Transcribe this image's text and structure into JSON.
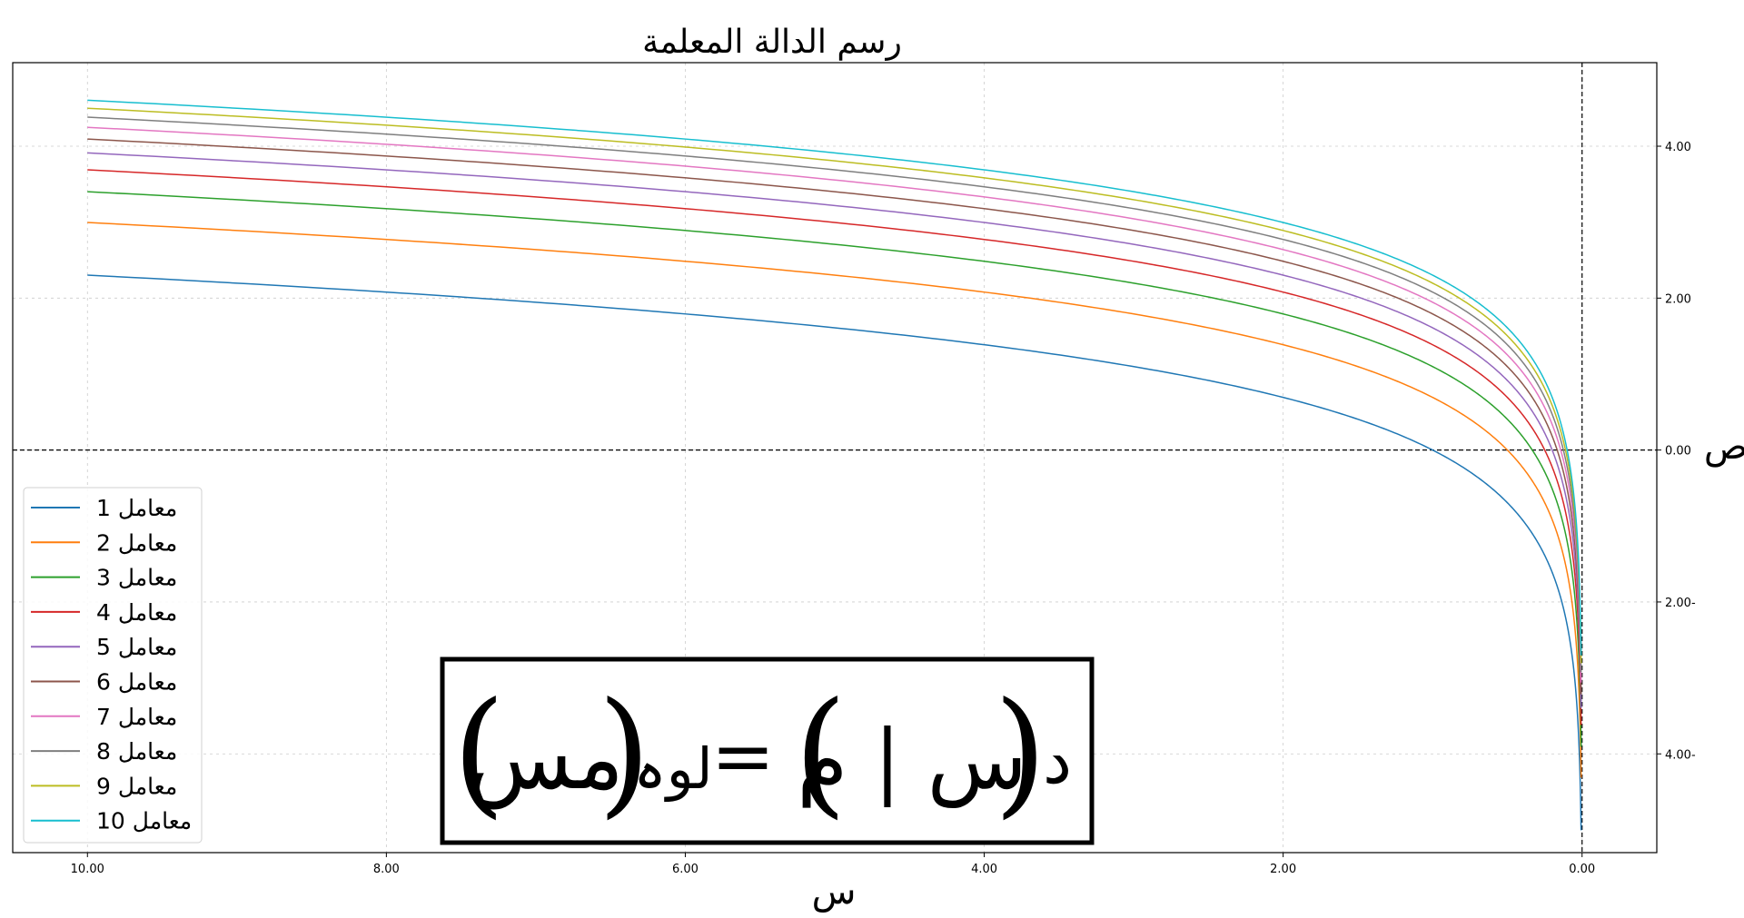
{
  "chart_data": {
    "type": "line",
    "title": "رسم الدالة المعلمة",
    "xlabel": "س",
    "ylabel": "ص",
    "xlim": [
      10.5,
      -0.5
    ],
    "ylim": [
      -5.3,
      5.1
    ],
    "x_inverted": true,
    "x_ticks": [
      "10.00",
      "8.00",
      "6.00",
      "4.00",
      "2.00",
      "0.00"
    ],
    "x_tick_values": [
      10,
      8,
      6,
      4,
      2,
      0
    ],
    "y_ticks": [
      "4.00",
      "2.00",
      "0.00",
      "2.00-",
      "4.00-"
    ],
    "y_tick_values": [
      4,
      2,
      0,
      -2,
      -4
    ],
    "y_axis_side": "right",
    "grid": true,
    "reference_lines": {
      "horizontal": 0,
      "vertical": 0
    },
    "function": "y = ln(m * x)",
    "x_range": [
      0.0067,
      10
    ],
    "legend_position": "lower-left",
    "series": [
      {
        "name": "معامل 1",
        "param": 1,
        "color": "#1f77b4"
      },
      {
        "name": "معامل 2",
        "param": 2,
        "color": "#ff7f0e"
      },
      {
        "name": "معامل 3",
        "param": 3,
        "color": "#2ca02c"
      },
      {
        "name": "معامل 4",
        "param": 4,
        "color": "#d62728"
      },
      {
        "name": "معامل 5",
        "param": 5,
        "color": "#9467bd"
      },
      {
        "name": "معامل 6",
        "param": 6,
        "color": "#8c564b"
      },
      {
        "name": "معامل 7",
        "param": 7,
        "color": "#e377c2"
      },
      {
        "name": "معامل 8",
        "param": 8,
        "color": "#7f7f7f"
      },
      {
        "name": "معامل 9",
        "param": 9,
        "color": "#bcbd22"
      },
      {
        "name": "معامل 10",
        "param": 10,
        "color": "#17becf"
      }
    ],
    "annotation": {
      "formula": "د (س | م) = لوہ (مس)",
      "parts": {
        "func": "د",
        "arg": "س | م",
        "eq": "=",
        "log": "لوہ",
        "inner": "مس"
      }
    }
  }
}
